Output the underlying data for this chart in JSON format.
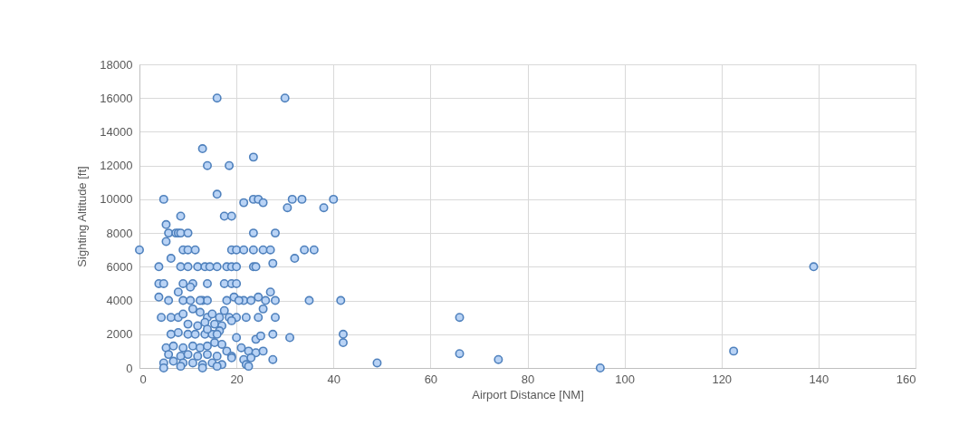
{
  "chart_data": {
    "type": "scatter",
    "xlabel": "Airport Distance [NM]",
    "ylabel": "Sighting Altitude [ft]",
    "xlim": [
      0,
      160
    ],
    "xticks": [
      0,
      20,
      40,
      60,
      80,
      100,
      120,
      140,
      160
    ],
    "ylim": [
      0,
      18000
    ],
    "yticks": [
      0,
      2000,
      4000,
      6000,
      8000,
      10000,
      12000,
      14000,
      16000,
      18000
    ],
    "grid": true,
    "marker": "circle",
    "series": [
      {
        "color": "#4f81bd",
        "x": [
          16,
          30,
          13,
          23.5,
          14,
          18.5,
          16,
          5,
          21.5,
          23.5,
          24.5,
          25.5,
          30.5,
          31.5,
          33.5,
          38,
          40,
          8.5,
          17.5,
          19,
          5.5,
          6,
          7.5,
          8,
          8.5,
          10,
          5.5,
          0,
          9,
          10,
          11.5,
          19,
          20,
          21.5,
          23.5,
          25.5,
          27,
          28,
          23.5,
          34,
          36,
          32,
          6.5,
          4,
          8.5,
          10,
          12,
          13.5,
          14.5,
          16,
          18,
          19,
          20,
          23.5,
          24,
          27.5,
          139,
          4,
          5,
          9,
          11,
          14,
          17.5,
          19,
          20,
          10.5,
          8,
          4,
          6,
          9,
          10.5,
          13,
          14,
          18,
          19.5,
          21.5,
          23,
          24.5,
          26,
          27,
          28,
          35,
          41.5,
          4.5,
          6.5,
          8,
          9,
          11,
          12.5,
          14,
          15,
          16.5,
          18.5,
          20,
          22,
          24.5,
          25.5,
          28,
          66,
          10,
          12,
          13.5,
          15.5,
          17,
          19,
          6.5,
          8,
          10,
          11.5,
          13.5,
          15,
          16.5,
          20,
          24,
          25,
          27.5,
          31,
          42,
          42,
          5.5,
          7,
          9,
          11,
          12.5,
          14,
          15.5,
          17,
          18,
          21,
          22.5,
          24,
          25.5,
          66,
          122.5,
          6,
          8.5,
          10,
          12,
          14,
          16,
          19,
          21.5,
          23,
          27.5,
          74,
          5,
          7,
          9,
          11,
          13,
          15,
          17,
          22,
          49,
          5,
          8.5,
          13,
          16,
          95,
          22.5,
          19,
          14,
          16,
          17.5,
          12.5,
          20.5
        ],
        "values": [
          16000,
          16000,
          13000,
          12500,
          12000,
          12000,
          10300,
          10000,
          9800,
          10000,
          10000,
          9800,
          9500,
          10000,
          10000,
          9500,
          10000,
          9000,
          9000,
          9000,
          8500,
          8000,
          8000,
          8000,
          8000,
          8000,
          7500,
          7000,
          7000,
          7000,
          7000,
          7000,
          7000,
          7000,
          7000,
          7000,
          7000,
          8000,
          8000,
          7000,
          7000,
          6500,
          6500,
          6000,
          6000,
          6000,
          6000,
          6000,
          6000,
          6000,
          6000,
          6000,
          6000,
          6000,
          6000,
          6200,
          6000,
          5000,
          5000,
          5000,
          5000,
          5000,
          5000,
          5000,
          5000,
          4800,
          4500,
          4200,
          4000,
          4000,
          4000,
          4000,
          4000,
          4000,
          4200,
          4000,
          4000,
          4200,
          4000,
          4500,
          4000,
          4000,
          4000,
          3000,
          3000,
          3000,
          3200,
          3500,
          3300,
          3000,
          3200,
          3000,
          3000,
          3000,
          3000,
          3000,
          3500,
          3000,
          3000,
          2600,
          2500,
          2700,
          2600,
          2500,
          2800,
          2000,
          2100,
          2000,
          2000,
          2000,
          2000,
          2200,
          1800,
          1700,
          1900,
          2000,
          1800,
          2000,
          1500,
          1200,
          1300,
          1200,
          1300,
          1200,
          1300,
          1500,
          1400,
          1000,
          1200,
          1000,
          900,
          1000,
          850,
          1000,
          800,
          700,
          800,
          700,
          800,
          700,
          700,
          500,
          600,
          500,
          500,
          300,
          400,
          300,
          300,
          200,
          300,
          200,
          200,
          300,
          0,
          100,
          0,
          100,
          0,
          100,
          600,
          2300,
          2000,
          3400,
          4000,
          4000
        ]
      }
    ]
  }
}
